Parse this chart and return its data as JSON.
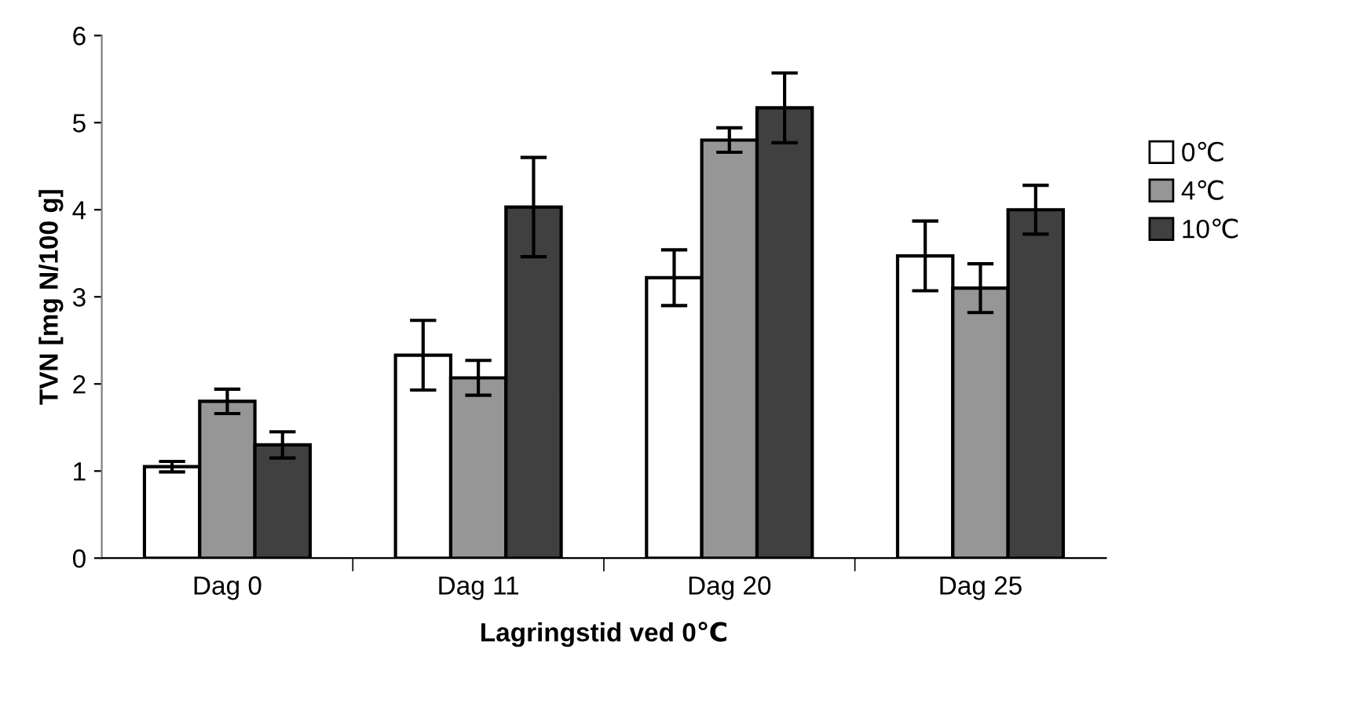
{
  "chart_data": {
    "type": "bar",
    "xlabel": "Lagringstid ved 0℃",
    "ylabel": "TVN [mg N/100 g]",
    "categories": [
      "Dag 0",
      "Dag 11",
      "Dag 20",
      "Dag 25"
    ],
    "series": [
      {
        "name": "0℃",
        "color": "#ffffff",
        "values": [
          1.05,
          2.33,
          3.22,
          3.47
        ],
        "errors": [
          0.06,
          0.4,
          0.32,
          0.4
        ]
      },
      {
        "name": "4℃",
        "color": "#969696",
        "values": [
          1.8,
          2.07,
          4.8,
          3.1
        ],
        "errors": [
          0.14,
          0.2,
          0.14,
          0.28
        ]
      },
      {
        "name": "10℃",
        "color": "#404040",
        "values": [
          1.3,
          4.03,
          5.17,
          4.0
        ],
        "errors": [
          0.15,
          0.57,
          0.4,
          0.28
        ]
      }
    ],
    "ylim": [
      0,
      6
    ],
    "yticks": [
      0,
      1,
      2,
      3,
      4,
      5,
      6
    ],
    "grid": false,
    "legend": "right"
  }
}
